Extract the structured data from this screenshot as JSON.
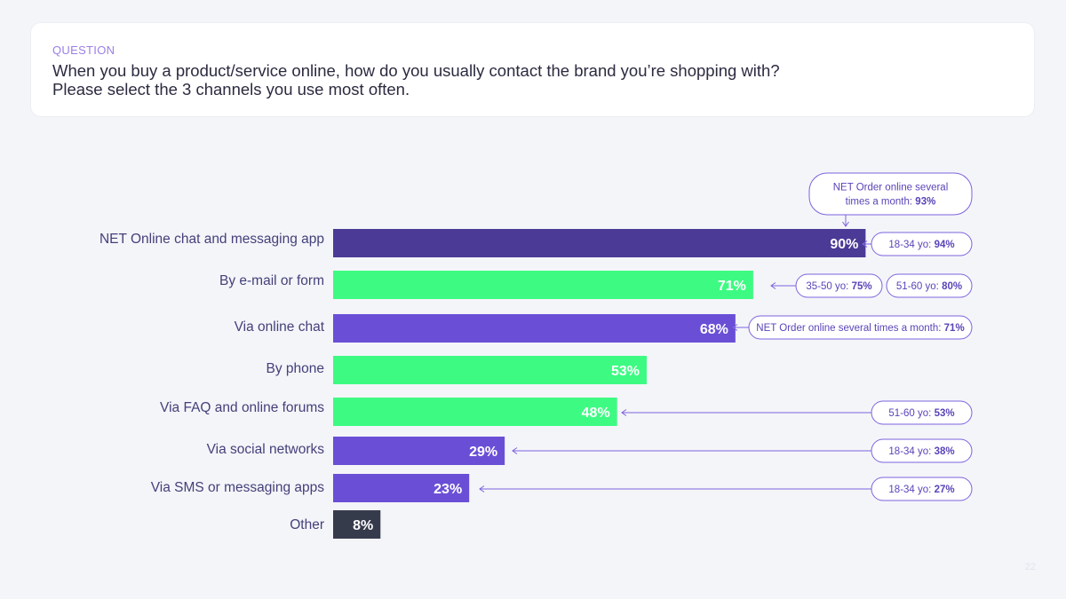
{
  "question": {
    "label": "QUESTION",
    "text_line1": "When you buy a product/service online, how do you usually contact the brand you’re shopping with?",
    "text_line2": "Please select the 3 channels you use most often."
  },
  "colors": {
    "dark_purple": "#4b3a96",
    "purple": "#6a4fd6",
    "green": "#3dfb82",
    "dark": "#363b4c",
    "callout_stroke": "#7d63dd",
    "callout_text": "#5a44b8",
    "label_text": "#44407a"
  },
  "chart_data": {
    "type": "bar",
    "orientation": "horizontal",
    "xlim": [
      0,
      100
    ],
    "unit": "%",
    "categories": [
      "NET Online chat and messaging app",
      "By e-mail or form",
      "Via online chat",
      "By phone",
      "Via FAQ and online forums",
      "Via social networks",
      "Via SMS or messaging apps",
      "Other"
    ],
    "values": [
      90,
      71,
      68,
      53,
      48,
      29,
      23,
      8
    ],
    "value_labels": [
      "90%",
      "71%",
      "68%",
      "53%",
      "48%",
      "29%",
      "23%",
      "8%"
    ],
    "bar_colors": [
      "dark_purple",
      "green",
      "purple",
      "green",
      "green",
      "purple",
      "purple",
      "dark"
    ],
    "annotations": [
      {
        "bar": 0,
        "position": "top",
        "lines": [
          "NET Order online several",
          "times a month: "
        ],
        "bold": "93%"
      },
      {
        "bar": 0,
        "position": "right",
        "lines": [
          "18-34 yo: "
        ],
        "bold": "94%"
      },
      {
        "bar": 1,
        "position": "right",
        "lines": [
          "35-50 yo: "
        ],
        "bold": "75%"
      },
      {
        "bar": 1,
        "position": "right",
        "lines": [
          "51-60 yo: "
        ],
        "bold": "80%"
      },
      {
        "bar": 2,
        "position": "right",
        "lines": [
          "NET Order online several times a month: "
        ],
        "bold": "71%"
      },
      {
        "bar": 4,
        "position": "right",
        "lines": [
          "51-60 yo: "
        ],
        "bold": "53%"
      },
      {
        "bar": 5,
        "position": "right",
        "lines": [
          "18-34 yo: "
        ],
        "bold": "38%"
      },
      {
        "bar": 6,
        "position": "right",
        "lines": [
          "18-34 yo: "
        ],
        "bold": "27%"
      }
    ]
  },
  "page_number": "22"
}
